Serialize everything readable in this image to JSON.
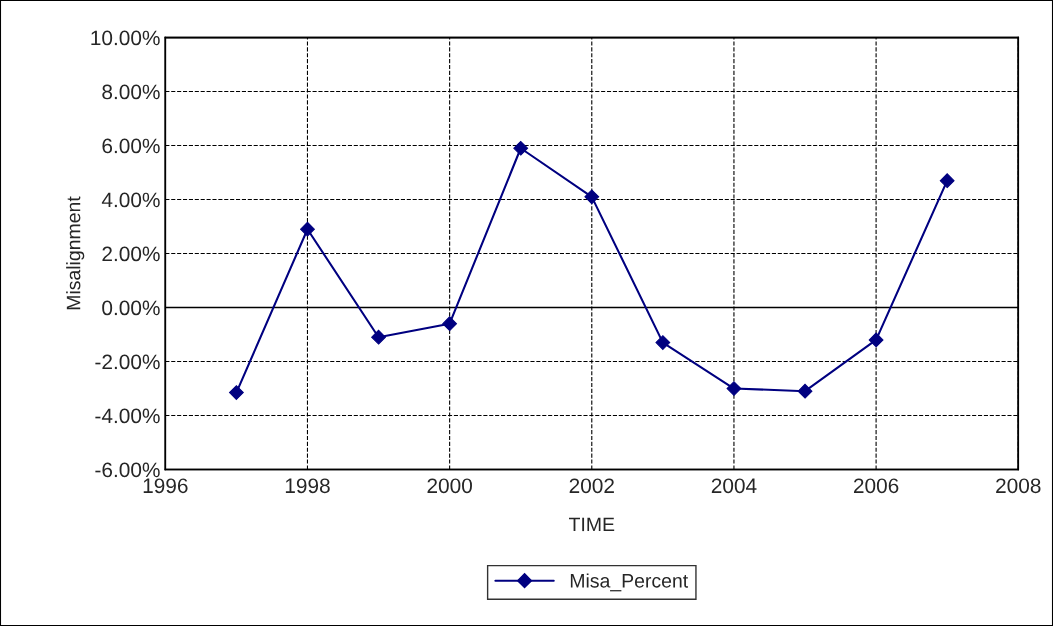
{
  "chart_data": {
    "type": "line",
    "xlabel": "TIME",
    "ylabel": "Misalignment",
    "x": [
      1997,
      1998,
      1999,
      2000,
      2001,
      2002,
      2003,
      2004,
      2005,
      2006,
      2007
    ],
    "series": [
      {
        "name": "Misa_Percent",
        "color": "#000080",
        "values": [
          -3.15,
          2.9,
          -1.1,
          -0.6,
          5.9,
          4.1,
          -1.3,
          -3.0,
          -3.1,
          -1.2,
          4.7
        ]
      }
    ],
    "xlim": [
      1996,
      2008
    ],
    "xticks": [
      1996,
      1998,
      2000,
      2002,
      2004,
      2006,
      2008
    ],
    "ylim": [
      -6,
      10
    ],
    "yticks": [
      {
        "value": -6,
        "label": "-6.00%"
      },
      {
        "value": -4,
        "label": "-4.00%"
      },
      {
        "value": -2,
        "label": "-2.00%"
      },
      {
        "value": 0,
        "label": "0.00%"
      },
      {
        "value": 2,
        "label": "2.00%"
      },
      {
        "value": 4,
        "label": "4.00%"
      },
      {
        "value": 6,
        "label": "6.00%"
      },
      {
        "value": 8,
        "label": "8.00%"
      },
      {
        "value": 10,
        "label": "10.00%"
      }
    ],
    "ref_lines": [
      {
        "axis": "y",
        "value": 0,
        "color": "#000000"
      }
    ],
    "grid": true,
    "legend": "bottom",
    "marker": "diamond",
    "line_style": "solid"
  }
}
